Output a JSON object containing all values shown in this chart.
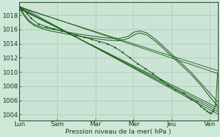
{
  "bg_color": "#cce8d8",
  "grid_major_color": "#b8c8c0",
  "grid_minor_color": "#c8d8cc",
  "line_color": "#1a5c1a",
  "xlabel_ticks": [
    0,
    1,
    2,
    3,
    4,
    5
  ],
  "xlabel_labels": [
    "Lun",
    "Sam",
    "Mar",
    "Mer",
    "Jeu",
    "Ven"
  ],
  "xlabel": "Pression niveau de la mer( hPa )",
  "ylabel_ticks": [
    1004,
    1006,
    1008,
    1010,
    1012,
    1014,
    1016,
    1018
  ],
  "ylim": [
    1003.2,
    1019.8
  ],
  "xlim": [
    0,
    5.2
  ],
  "straight_lines": [
    {
      "x0": 0,
      "y0": 1019.3,
      "x1": 5.2,
      "y1": 1004.1
    },
    {
      "x0": 0,
      "y0": 1019.1,
      "x1": 5.2,
      "y1": 1004.4
    },
    {
      "x0": 0,
      "y0": 1019.0,
      "x1": 5.2,
      "y1": 1004.7
    },
    {
      "x0": 0,
      "y0": 1018.9,
      "x1": 5.2,
      "y1": 1005.0
    },
    {
      "x0": 0,
      "y0": 1019.2,
      "x1": 5.2,
      "y1": 1009.8
    },
    {
      "x0": 0,
      "y0": 1019.1,
      "x1": 5.2,
      "y1": 1010.2
    }
  ],
  "curved_line1_x": [
    0,
    0.12,
    0.25,
    0.4,
    0.6,
    0.8,
    1.0,
    1.3,
    1.6,
    2.0,
    2.3,
    2.6,
    2.85,
    3.0,
    3.15,
    3.35,
    3.6,
    3.9,
    4.2,
    4.5,
    4.75,
    5.0,
    5.2
  ],
  "curved_line1_y": [
    1019.2,
    1018.2,
    1017.3,
    1016.7,
    1016.3,
    1016.1,
    1015.9,
    1015.6,
    1015.3,
    1015.0,
    1014.8,
    1014.7,
    1015.0,
    1015.6,
    1015.8,
    1015.5,
    1014.5,
    1013.0,
    1011.5,
    1010.0,
    1008.5,
    1007.0,
    1005.8
  ],
  "curved_line2_x": [
    0,
    0.12,
    0.25,
    0.4,
    0.6,
    0.8,
    1.0,
    1.3,
    1.6,
    2.0,
    2.3,
    2.6,
    2.85,
    3.0,
    3.15,
    3.35,
    3.6,
    3.9,
    4.2,
    4.5,
    4.75,
    5.0,
    5.2
  ],
  "curved_line2_y": [
    1019.0,
    1018.0,
    1017.1,
    1016.5,
    1016.1,
    1015.8,
    1015.6,
    1015.3,
    1015.0,
    1014.7,
    1014.5,
    1014.4,
    1014.7,
    1015.2,
    1015.5,
    1015.2,
    1014.2,
    1012.7,
    1011.2,
    1009.7,
    1008.2,
    1006.5,
    1005.2
  ],
  "marker_line_x": [
    0,
    0.1,
    0.2,
    0.3,
    0.5,
    0.7,
    0.9,
    1.1,
    1.3,
    1.5,
    1.7,
    1.9,
    2.1,
    2.3,
    2.5,
    2.7,
    2.9,
    3.1,
    3.3,
    3.5,
    3.7,
    3.9,
    4.1,
    4.3,
    4.5,
    4.65,
    4.75,
    4.85,
    4.92,
    4.97,
    5.02,
    5.08,
    5.15,
    5.2
  ],
  "marker_line_y": [
    1019.2,
    1018.8,
    1018.3,
    1017.6,
    1016.8,
    1016.4,
    1016.1,
    1015.8,
    1015.5,
    1015.2,
    1014.9,
    1014.6,
    1014.3,
    1014.0,
    1013.5,
    1012.8,
    1012.0,
    1011.2,
    1010.5,
    1009.8,
    1009.0,
    1008.2,
    1007.5,
    1007.0,
    1006.2,
    1005.8,
    1005.2,
    1004.8,
    1004.5,
    1004.3,
    1004.2,
    1004.5,
    1005.5,
    1009.8
  ]
}
